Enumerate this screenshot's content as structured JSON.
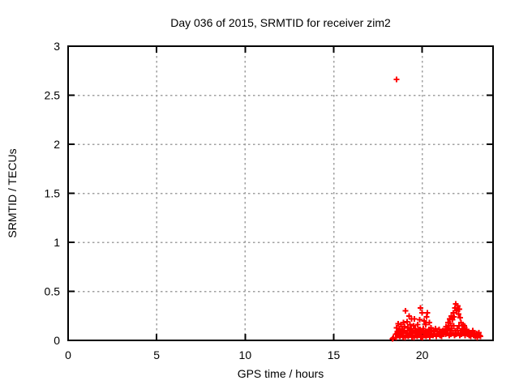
{
  "figure": {
    "background": "#ffffff",
    "text_color": "#000000",
    "border_color": "#000000",
    "grid_color": "#a0a0a0",
    "marker_color": "#ff0000"
  },
  "chart_data": {
    "type": "scatter",
    "title": "Day 036 of 2015, SRMTID for receiver zim2",
    "xlabel": "GPS time / hours",
    "ylabel": "SRMTID / TECUs",
    "xlim": [
      0,
      24
    ],
    "ylim": [
      0,
      3
    ],
    "xticks": [
      0,
      5,
      10,
      15,
      20
    ],
    "xtick_labels": [
      "0",
      "5",
      "10",
      "15",
      "20"
    ],
    "yticks": [
      0,
      0.5,
      1,
      1.5,
      2,
      2.5,
      3
    ],
    "ytick_labels": [
      "0",
      "0.5",
      "1",
      "1.5",
      "2",
      "2.5",
      "3"
    ],
    "grid": true,
    "grid_style": "dashed",
    "legend_position": "none",
    "marker": "plus",
    "outlier": [
      18.54,
      2.66
    ],
    "series": [
      {
        "name": "SRMTID",
        "color": "#ff0000",
        "points": [
          [
            18.54,
            2.66
          ],
          [
            18.33,
            0.015
          ],
          [
            18.37,
            0.025
          ],
          [
            18.5,
            0.06
          ],
          [
            18.55,
            0.13
          ],
          [
            18.6,
            0.09
          ],
          [
            18.65,
            0.17
          ],
          [
            18.7,
            0.12
          ],
          [
            18.75,
            0.04
          ],
          [
            18.8,
            0.16
          ],
          [
            18.85,
            0.08
          ],
          [
            18.9,
            0.12
          ],
          [
            18.95,
            0.18
          ],
          [
            19.0,
            0.14
          ],
          [
            19.05,
            0.3
          ],
          [
            19.1,
            0.08
          ],
          [
            19.15,
            0.19
          ],
          [
            19.2,
            0.13
          ],
          [
            19.25,
            0.25
          ],
          [
            19.3,
            0.16
          ],
          [
            19.35,
            0.06
          ],
          [
            19.4,
            0.22
          ],
          [
            19.45,
            0.1
          ],
          [
            19.5,
            0.15
          ],
          [
            19.55,
            0.22
          ],
          [
            19.6,
            0.12
          ],
          [
            19.65,
            0.08
          ],
          [
            19.7,
            0.07
          ],
          [
            19.75,
            0.16
          ],
          [
            19.8,
            0.11
          ],
          [
            19.85,
            0.21
          ],
          [
            19.9,
            0.33
          ],
          [
            19.95,
            0.05
          ],
          [
            20.0,
            0.28
          ],
          [
            20.05,
            0.12
          ],
          [
            20.1,
            0.2
          ],
          [
            20.15,
            0.08
          ],
          [
            20.2,
            0.16
          ],
          [
            20.25,
            0.24
          ],
          [
            20.3,
            0.28
          ],
          [
            20.35,
            0.1
          ],
          [
            20.4,
            0.18
          ],
          [
            20.45,
            0.06
          ],
          [
            20.5,
            0.13
          ],
          [
            20.55,
            0.09
          ],
          [
            20.6,
            0.05
          ],
          [
            20.65,
            0.1
          ],
          [
            20.7,
            0.07
          ],
          [
            20.75,
            0.12
          ],
          [
            20.8,
            0.04
          ],
          [
            20.85,
            0.09
          ],
          [
            20.9,
            0.06
          ],
          [
            20.95,
            0.11
          ],
          [
            21.0,
            0.05
          ],
          [
            21.05,
            0.08
          ],
          [
            21.1,
            0.04
          ],
          [
            21.15,
            0.1
          ],
          [
            21.2,
            0.06
          ],
          [
            21.25,
            0.09
          ],
          [
            21.3,
            0.08
          ],
          [
            21.35,
            0.14
          ],
          [
            21.4,
            0.11
          ],
          [
            21.45,
            0.18
          ],
          [
            21.5,
            0.13
          ],
          [
            21.55,
            0.22
          ],
          [
            21.6,
            0.17
          ],
          [
            21.65,
            0.25
          ],
          [
            21.7,
            0.21
          ],
          [
            21.75,
            0.28
          ],
          [
            21.8,
            0.24
          ],
          [
            21.85,
            0.33
          ],
          [
            21.9,
            0.37
          ],
          [
            21.95,
            0.3
          ],
          [
            22.0,
            0.35
          ],
          [
            22.05,
            0.27
          ],
          [
            22.1,
            0.32
          ],
          [
            22.15,
            0.23
          ],
          [
            22.2,
            0.18
          ],
          [
            22.25,
            0.12
          ],
          [
            22.3,
            0.16
          ],
          [
            22.35,
            0.09
          ],
          [
            22.4,
            0.13
          ],
          [
            22.45,
            0.07
          ],
          [
            22.5,
            0.11
          ],
          [
            22.55,
            0.06
          ],
          [
            22.6,
            0.09
          ],
          [
            22.65,
            0.05
          ],
          [
            22.7,
            0.08
          ],
          [
            22.75,
            0.04
          ],
          [
            22.8,
            0.07
          ],
          [
            22.85,
            0.1
          ],
          [
            22.9,
            0.05
          ],
          [
            22.95,
            0.08
          ],
          [
            23.0,
            0.04
          ],
          [
            23.05,
            0.07
          ],
          [
            23.1,
            0.03
          ],
          [
            23.15,
            0.06
          ],
          [
            23.2,
            0.08
          ],
          [
            23.25,
            0.05
          ],
          [
            23.3,
            0.04
          ],
          [
            18.525,
            0.03
          ],
          [
            18.575,
            0.07
          ],
          [
            18.625,
            0.05
          ],
          [
            18.675,
            0.1
          ],
          [
            18.725,
            0.04
          ],
          [
            18.775,
            0.08
          ],
          [
            18.825,
            0.06
          ],
          [
            18.875,
            0.11
          ],
          [
            18.925,
            0.035
          ],
          [
            18.975,
            0.09
          ],
          [
            19.025,
            0.03
          ],
          [
            19.075,
            0.07
          ],
          [
            19.125,
            0.05
          ],
          [
            19.175,
            0.1
          ],
          [
            19.225,
            0.04
          ],
          [
            19.275,
            0.08
          ],
          [
            19.325,
            0.06
          ],
          [
            19.375,
            0.11
          ],
          [
            19.425,
            0.035
          ],
          [
            19.475,
            0.09
          ],
          [
            19.525,
            0.03
          ],
          [
            19.575,
            0.07
          ],
          [
            19.625,
            0.05
          ],
          [
            19.675,
            0.1
          ],
          [
            19.725,
            0.04
          ],
          [
            19.775,
            0.08
          ],
          [
            19.825,
            0.06
          ],
          [
            19.875,
            0.11
          ],
          [
            19.925,
            0.035
          ],
          [
            19.975,
            0.09
          ],
          [
            20.025,
            0.03
          ],
          [
            20.075,
            0.07
          ],
          [
            20.125,
            0.05
          ],
          [
            20.175,
            0.1
          ],
          [
            20.225,
            0.04
          ],
          [
            20.275,
            0.08
          ],
          [
            20.325,
            0.06
          ],
          [
            20.375,
            0.11
          ],
          [
            20.425,
            0.035
          ],
          [
            20.475,
            0.09
          ],
          [
            21.325,
            0.06
          ],
          [
            21.375,
            0.12
          ],
          [
            21.425,
            0.08
          ],
          [
            21.475,
            0.15
          ],
          [
            21.525,
            0.05
          ],
          [
            21.575,
            0.1
          ],
          [
            21.625,
            0.06
          ],
          [
            21.675,
            0.12
          ],
          [
            21.725,
            0.08
          ],
          [
            21.775,
            0.15
          ],
          [
            21.825,
            0.05
          ],
          [
            21.875,
            0.1
          ],
          [
            21.925,
            0.06
          ],
          [
            21.975,
            0.12
          ],
          [
            22.025,
            0.08
          ],
          [
            22.075,
            0.15
          ],
          [
            22.125,
            0.05
          ],
          [
            22.175,
            0.1
          ],
          [
            22.225,
            0.06
          ],
          [
            22.275,
            0.12
          ],
          [
            22.325,
            0.08
          ],
          [
            22.375,
            0.15
          ],
          [
            22.425,
            0.05
          ],
          [
            22.475,
            0.1
          ]
        ]
      }
    ]
  }
}
